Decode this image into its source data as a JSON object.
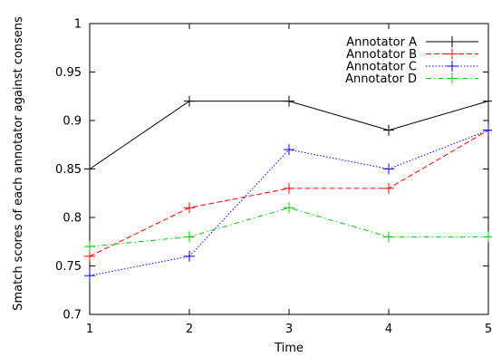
{
  "chart_data": {
    "type": "line",
    "title": "",
    "xlabel": "Time",
    "ylabel": "Smatch scores of each annotator against consens",
    "x": [
      1,
      2,
      3,
      4,
      5
    ],
    "xlim": [
      1,
      5
    ],
    "ylim": [
      0.7,
      1
    ],
    "xticks": [
      "1",
      "2",
      "3",
      "4",
      "5"
    ],
    "yticks": [
      "0.7",
      "0.75",
      "0.8",
      "0.85",
      "0.9",
      "0.95",
      "1"
    ],
    "grid": false,
    "legend_position": "top-right",
    "series": [
      {
        "name": "Annotator A",
        "values": [
          0.85,
          0.92,
          0.92,
          0.89,
          0.92
        ],
        "color": "#000000",
        "dash": "solid",
        "marker": "plus"
      },
      {
        "name": "Annotator B",
        "values": [
          0.76,
          0.81,
          0.83,
          0.83,
          0.89
        ],
        "color": "#ff0000",
        "dash": "dashed",
        "marker": "plus"
      },
      {
        "name": "Annotator C",
        "values": [
          0.74,
          0.76,
          0.87,
          0.85,
          0.89
        ],
        "color": "#0000ff",
        "dash": "dotted",
        "marker": "plus"
      },
      {
        "name": "Annotator D",
        "values": [
          0.77,
          0.78,
          0.81,
          0.78,
          0.78
        ],
        "color": "#00cc00",
        "dash": "dashdot",
        "marker": "plus"
      }
    ]
  }
}
